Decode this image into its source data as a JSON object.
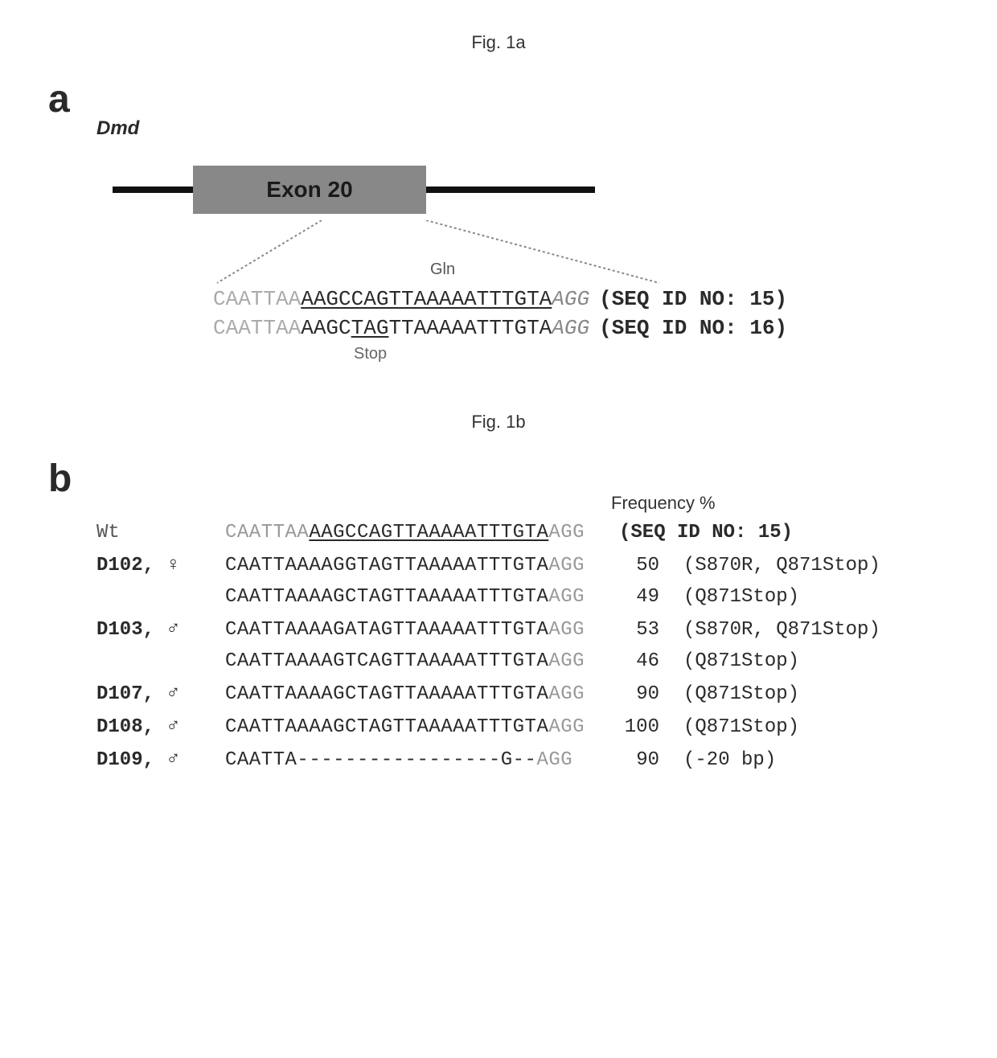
{
  "figA": {
    "label": "Fig. 1a",
    "panel_letter": "a",
    "gene_name": "Dmd",
    "exon_label": "Exon 20",
    "gln_label": "Gln",
    "stop_label": "Stop",
    "seq1": {
      "gray_prefix": "CAATTAA",
      "main": "AAGCCAGTTAAAAATTTGTA",
      "italic_suffix": "AGG",
      "id": "(SEQ ID NO: 15)"
    },
    "seq2": {
      "gray_prefix": "CAATTAA",
      "pre_stop": "AAGC",
      "stop": "TAG",
      "post_stop": "TTAAAAATTTGTA",
      "italic_suffix": "AGG",
      "id": "(SEQ ID NO: 16)"
    }
  },
  "figB": {
    "label": "Fig. 1b",
    "panel_letter": "b",
    "freq_header": "Frequency %",
    "wt": {
      "id": "Wt",
      "gray_prefix": "CAATTAA",
      "main": "AAGCCAGTTAAAAATTTGTA",
      "gray_suffix": "AGG",
      "seq_id": "(SEQ ID NO: 15)"
    },
    "rows": [
      {
        "id": "D102,",
        "sex": "♀",
        "alleles": [
          {
            "seq": "CAATTAAAAGGTAGTTAAAAATTTGTAAGG",
            "freq": "50",
            "mut": "(S870R, Q871Stop)"
          },
          {
            "seq": "CAATTAAAAGCTAGTTAAAAATTTGTAAGG",
            "freq": "49",
            "mut": "(Q871Stop)"
          }
        ]
      },
      {
        "id": "D103,",
        "sex": "♂",
        "alleles": [
          {
            "seq": "CAATTAAAAGATAGTTAAAAATTTGTAAGG",
            "freq": "53",
            "mut": "(S870R, Q871Stop)"
          },
          {
            "seq": "CAATTAAAAGTCAGTTAAAAATTTGTAAGG",
            "freq": "46",
            "mut": "(Q871Stop)"
          }
        ]
      },
      {
        "id": "D107,",
        "sex": "♂",
        "alleles": [
          {
            "seq": "CAATTAAAAGCTAGTTAAAAATTTGTAAGG",
            "freq": "90",
            "mut": "(Q871Stop)"
          }
        ]
      },
      {
        "id": "D108,",
        "sex": "♂",
        "alleles": [
          {
            "seq": "CAATTAAAAGCTAGTTAAAAATTTGTAAGG",
            "freq": "100",
            "mut": "(Q871Stop)"
          }
        ]
      },
      {
        "id": "D109,",
        "sex": "♂",
        "alleles": [
          {
            "seq": "CAATTA-----------------G--AGG",
            "freq": "90",
            "mut": "(-20 bp)"
          }
        ]
      }
    ]
  }
}
